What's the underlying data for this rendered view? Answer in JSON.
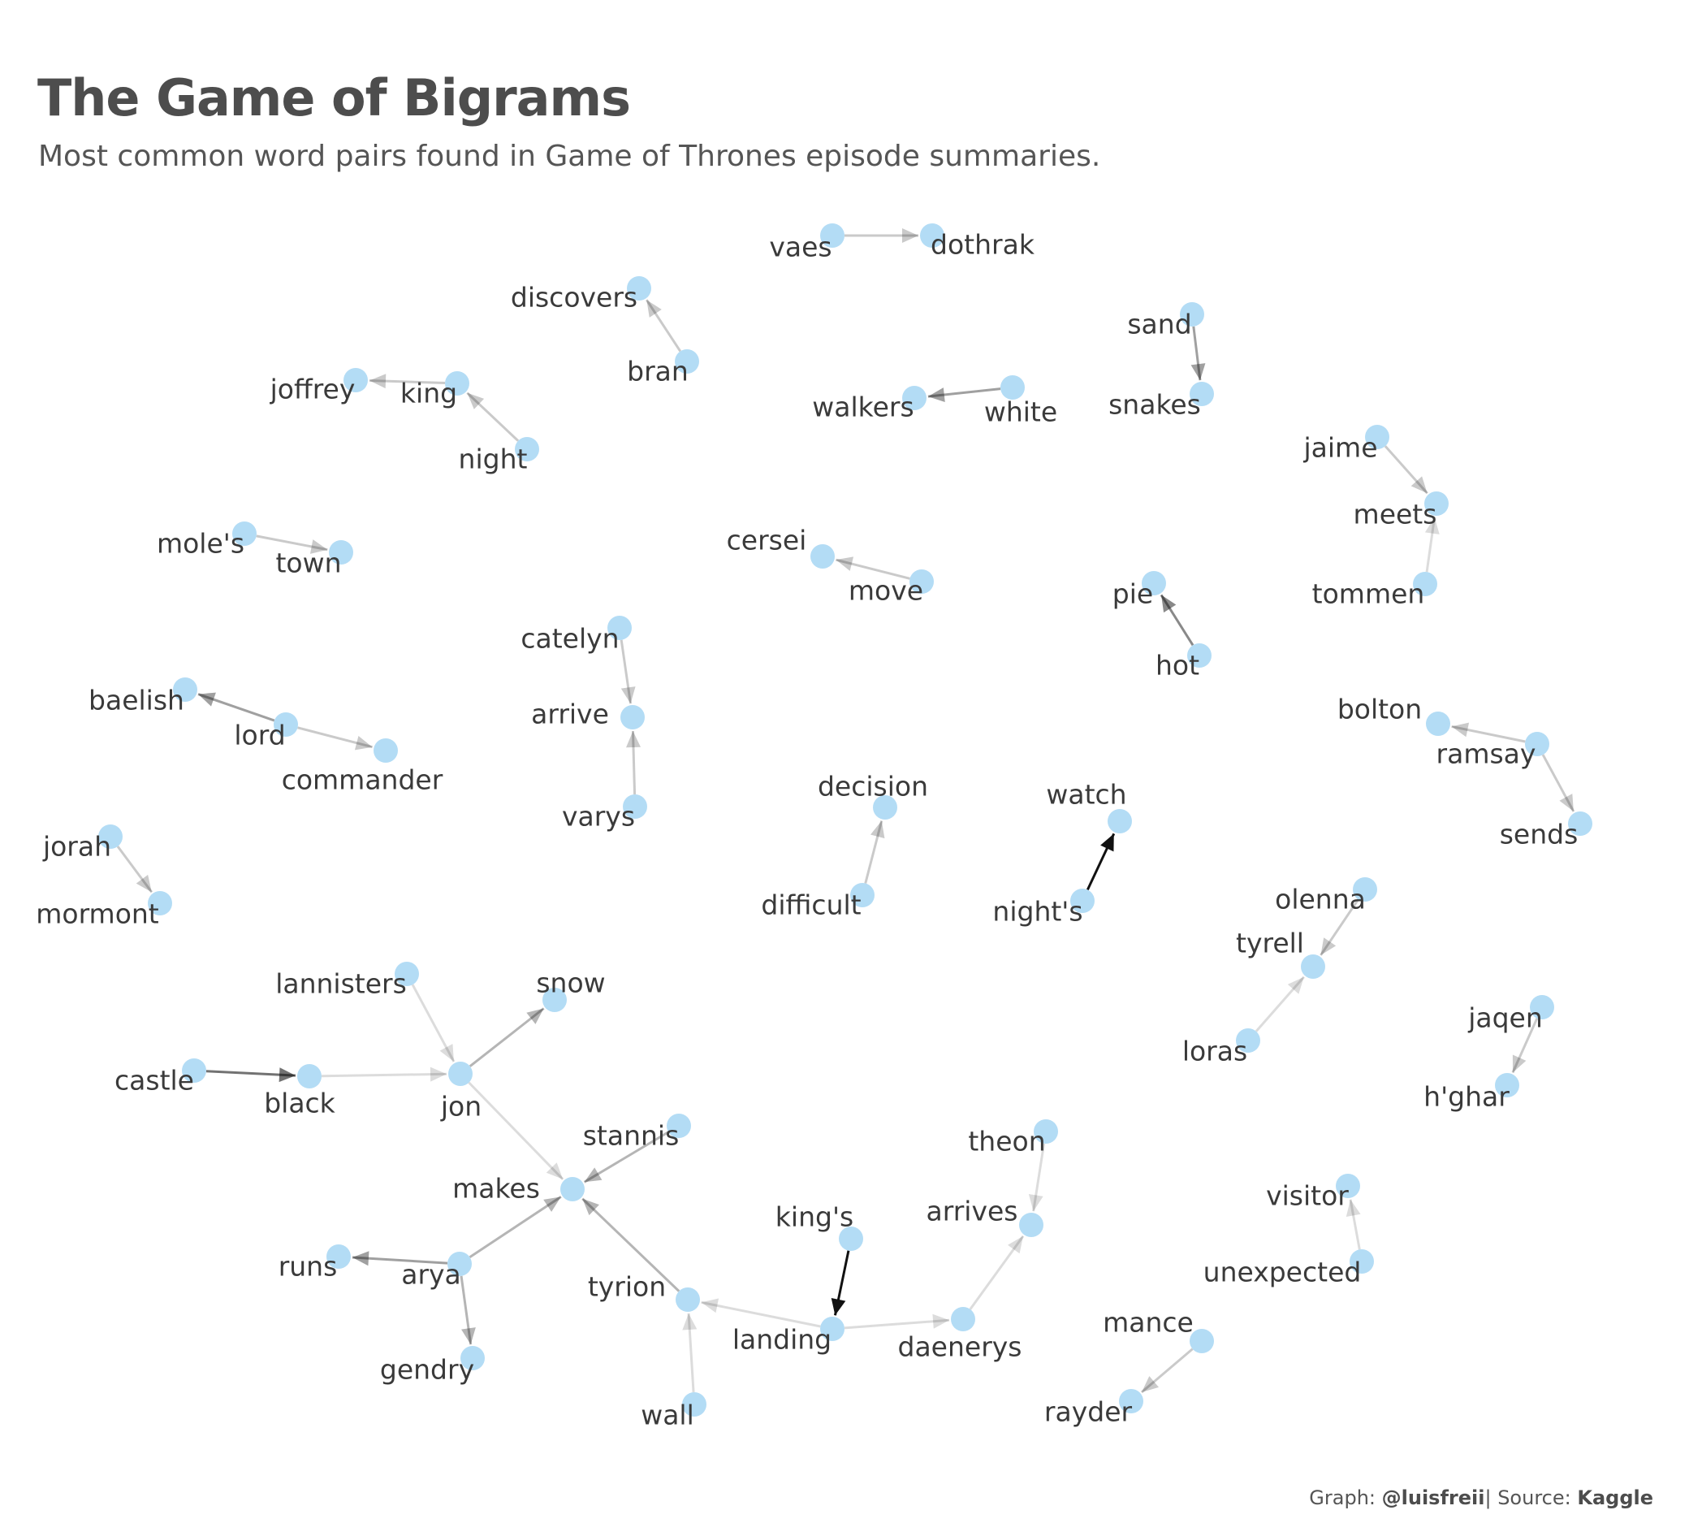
{
  "title": "The Game of Bigrams",
  "subtitle": "Most common word pairs found in Game of Thrones episode summaries.",
  "caption": {
    "graph_prefix": "Graph: ",
    "graph_author": "@luisfreii",
    "source_prefix": "| Source: ",
    "source_name": "Kaggle"
  },
  "colors": {
    "node": "#b3dcf5",
    "edge_dark": "#111111",
    "title": "#4d4d4d"
  },
  "chart_data": {
    "type": "network",
    "nodes": [
      "vaes",
      "dothrak",
      "discovers",
      "bran",
      "sand",
      "snakes",
      "joffrey",
      "king",
      "night",
      "walkers",
      "white",
      "jaime",
      "meets",
      "tommen",
      "mole's",
      "town",
      "cersei",
      "move",
      "pie",
      "hot",
      "catelyn",
      "arrive",
      "varys",
      "baelish",
      "lord",
      "commander",
      "bolton",
      "ramsay",
      "sends",
      "decision",
      "difficult",
      "watch",
      "night's",
      "jorah",
      "mormont",
      "olenna",
      "tyrell",
      "loras",
      "lannisters",
      "snow",
      "castle",
      "black",
      "jon",
      "jaqen",
      "h'ghar",
      "stannis",
      "makes",
      "theon",
      "arrives",
      "king's",
      "runs",
      "arya",
      "visitor",
      "unexpected",
      "tyrion",
      "landing",
      "daenerys",
      "gendry",
      "wall",
      "mance",
      "rayder"
    ],
    "edges": [
      {
        "from": "vaes",
        "to": "dothrak",
        "n": 2
      },
      {
        "from": "bran",
        "to": "discovers",
        "n": 2
      },
      {
        "from": "sand",
        "to": "snakes",
        "n": 4
      },
      {
        "from": "king",
        "to": "joffrey",
        "n": 2
      },
      {
        "from": "night",
        "to": "king",
        "n": 2
      },
      {
        "from": "white",
        "to": "walkers",
        "n": 4
      },
      {
        "from": "jaime",
        "to": "meets",
        "n": 2
      },
      {
        "from": "tommen",
        "to": "meets",
        "n": 1
      },
      {
        "from": "mole's",
        "to": "town",
        "n": 2
      },
      {
        "from": "move",
        "to": "cersei",
        "n": 2
      },
      {
        "from": "hot",
        "to": "pie",
        "n": 5
      },
      {
        "from": "catelyn",
        "to": "arrive",
        "n": 2
      },
      {
        "from": "varys",
        "to": "arrive",
        "n": 2
      },
      {
        "from": "lord",
        "to": "baelish",
        "n": 4
      },
      {
        "from": "lord",
        "to": "commander",
        "n": 2
      },
      {
        "from": "ramsay",
        "to": "bolton",
        "n": 2
      },
      {
        "from": "ramsay",
        "to": "sends",
        "n": 2
      },
      {
        "from": "difficult",
        "to": "decision",
        "n": 2
      },
      {
        "from": "night's",
        "to": "watch",
        "n": 10
      },
      {
        "from": "jorah",
        "to": "mormont",
        "n": 2
      },
      {
        "from": "olenna",
        "to": "tyrell",
        "n": 2
      },
      {
        "from": "loras",
        "to": "tyrell",
        "n": 1
      },
      {
        "from": "lannisters",
        "to": "jon",
        "n": 1
      },
      {
        "from": "jon",
        "to": "snow",
        "n": 3
      },
      {
        "from": "castle",
        "to": "black",
        "n": 6
      },
      {
        "from": "black",
        "to": "jon",
        "n": 1
      },
      {
        "from": "jon",
        "to": "makes",
        "n": 1
      },
      {
        "from": "jaqen",
        "to": "h'ghar",
        "n": 2
      },
      {
        "from": "stannis",
        "to": "makes",
        "n": 3
      },
      {
        "from": "arya",
        "to": "makes",
        "n": 3
      },
      {
        "from": "tyrion",
        "to": "makes",
        "n": 3
      },
      {
        "from": "theon",
        "to": "arrives",
        "n": 1
      },
      {
        "from": "daenerys",
        "to": "arrives",
        "n": 1
      },
      {
        "from": "king's",
        "to": "landing",
        "n": 10
      },
      {
        "from": "arya",
        "to": "runs",
        "n": 4
      },
      {
        "from": "arya",
        "to": "gendry",
        "n": 3
      },
      {
        "from": "unexpected",
        "to": "visitor",
        "n": 1
      },
      {
        "from": "landing",
        "to": "tyrion",
        "n": 1
      },
      {
        "from": "landing",
        "to": "daenerys",
        "n": 1
      },
      {
        "from": "wall",
        "to": "tyrion",
        "n": 1
      },
      {
        "from": "mance",
        "to": "rayder",
        "n": 2
      }
    ]
  }
}
